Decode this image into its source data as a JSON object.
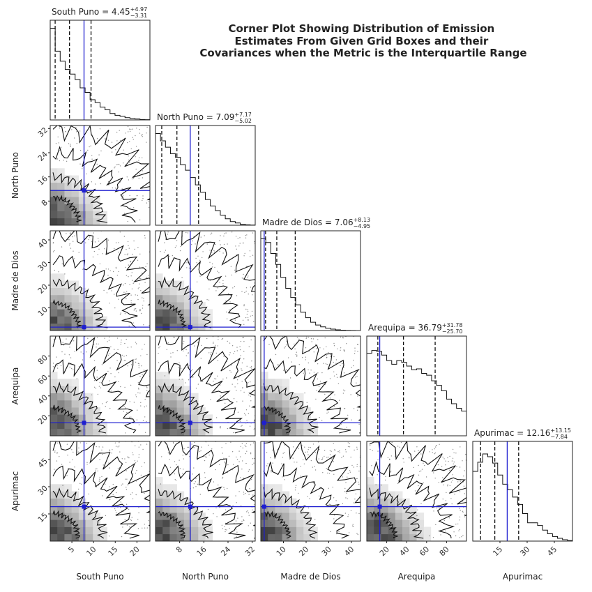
{
  "figure": {
    "title_lines": [
      "Corner Plot Showing Distribution of Emission",
      "Estimates From Given Grid Boxes and their",
      "Covariances when the Metric is the Interquartile Range"
    ]
  },
  "chart_data": {
    "type": "corner",
    "title": "Corner Plot Showing Distribution of Emission Estimates From Given Grid Boxes and their Covariances when the Metric is the Interquartile Range",
    "variables": [
      {
        "name": "South Puno",
        "median": "4.45",
        "plus": "+4.97",
        "minus": "−3.31",
        "range": [
          0,
          23
        ],
        "ticks": [
          5,
          10,
          15,
          20
        ],
        "q16": 1.14,
        "q50": 4.45,
        "q84": 9.42,
        "truth": 7.8,
        "hist": [
          1.0,
          0.75,
          0.64,
          0.55,
          0.5,
          0.44,
          0.35,
          0.3,
          0.22,
          0.19,
          0.14,
          0.11,
          0.07,
          0.05,
          0.04,
          0.025,
          0.015,
          0.01,
          0.005,
          0.003
        ]
      },
      {
        "name": "North Puno",
        "median": "7.09",
        "plus": "+7.17",
        "minus": "−5.02",
        "range": [
          0,
          33
        ],
        "ticks": [
          8,
          16,
          24,
          32
        ],
        "q16": 2.07,
        "q50": 7.09,
        "q84": 14.26,
        "truth": 11.5,
        "hist": [
          1.0,
          0.92,
          0.85,
          0.78,
          0.74,
          0.66,
          0.6,
          0.52,
          0.44,
          0.36,
          0.28,
          0.21,
          0.16,
          0.11,
          0.07,
          0.04,
          0.025,
          0.01,
          0.005,
          0.002
        ]
      },
      {
        "name": "Madre de Dios",
        "median": "7.06",
        "plus": "+8.13",
        "minus": "−4.95",
        "range": [
          0,
          44
        ],
        "ticks": [
          10,
          20,
          30,
          40
        ],
        "q16": 2.11,
        "q50": 7.06,
        "q84": 15.19,
        "truth": 1.5,
        "hist": [
          1.0,
          0.96,
          0.84,
          0.72,
          0.58,
          0.46,
          0.36,
          0.28,
          0.2,
          0.14,
          0.09,
          0.06,
          0.04,
          0.025,
          0.015,
          0.008,
          0.004,
          0.002,
          0.001,
          0.0
        ]
      },
      {
        "name": "Arequipa",
        "median": "36.79",
        "plus": "+31.78",
        "minus": "−25.70",
        "range": [
          0,
          100
        ],
        "ticks": [
          20,
          40,
          60,
          80
        ],
        "q16": 11.09,
        "q50": 36.79,
        "q84": 68.57,
        "truth": 13.0,
        "hist": [
          0.9,
          0.93,
          0.92,
          0.88,
          0.82,
          0.78,
          0.82,
          0.8,
          0.76,
          0.72,
          0.73,
          0.68,
          0.66,
          0.6,
          0.55,
          0.49,
          0.4,
          0.35,
          0.3,
          0.27
        ]
      },
      {
        "name": "Apurimac",
        "median": "12.16",
        "plus": "+13.15",
        "minus": "−7.84",
        "range": [
          0,
          55
        ],
        "ticks": [
          15,
          30,
          45
        ],
        "q16": 4.32,
        "q50": 12.16,
        "q84": 25.31,
        "truth": 19.0,
        "hist": [
          0.76,
          0.86,
          0.95,
          0.92,
          0.85,
          0.72,
          0.62,
          0.56,
          0.48,
          0.4,
          0.3,
          0.2,
          0.2,
          0.17,
          0.12,
          0.08,
          0.05,
          0.03,
          0.015,
          0.006
        ]
      }
    ],
    "colors": {
      "truth": "#1f1fd0",
      "contour": "#111111",
      "hist": "#111111",
      "quantile": "#111111"
    }
  }
}
